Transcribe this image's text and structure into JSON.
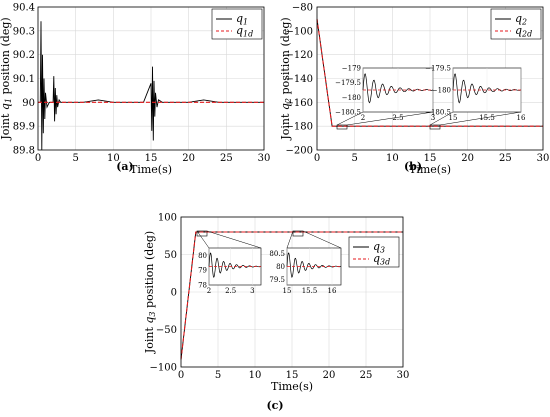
{
  "figure": {
    "panel_labels": [
      "(a)",
      "(b)",
      "(c)"
    ]
  },
  "chart_data": [
    {
      "type": "line",
      "panel": "(a)",
      "title": "",
      "xlabel": "Time(s)",
      "ylabel": "Joint q1 position (deg)",
      "xlim": [
        0,
        30
      ],
      "ylim": [
        89.8,
        90.4
      ],
      "xticks": [
        "0",
        "5",
        "10",
        "15",
        "20",
        "25",
        "30"
      ],
      "yticks": [
        "89.8",
        "89.9",
        "90",
        "90.1",
        "90.2",
        "90.3",
        "90.4"
      ],
      "grid": true,
      "legend_position": "top-right",
      "legend": [
        "q1",
        "q1d"
      ],
      "series": [
        {
          "name": "q1",
          "color": "#000000",
          "style": "solid",
          "x": [
            0,
            0.3,
            0.4,
            0.5,
            0.6,
            0.7,
            0.8,
            0.9,
            1.0,
            1.2,
            1.5,
            2.0,
            2.1,
            2.2,
            2.3,
            2.4,
            2.5,
            2.6,
            2.8,
            3.0,
            3.5,
            4.0,
            5,
            6,
            8,
            10,
            12,
            14,
            15.0,
            15.1,
            15.2,
            15.3,
            15.4,
            15.5,
            15.6,
            15.8,
            16.0,
            16.5,
            17,
            18,
            20,
            22,
            24,
            26,
            28,
            30
          ],
          "values": [
            90.0,
            90.0,
            90.34,
            89.8,
            90.2,
            89.87,
            90.1,
            89.93,
            90.04,
            89.98,
            90.0,
            90.0,
            90.11,
            89.92,
            90.06,
            89.95,
            90.03,
            89.98,
            90.01,
            90.0,
            90.0,
            90.0,
            90.0,
            90.0,
            90.01,
            90.0,
            90.0,
            90.0,
            90.08,
            89.88,
            90.15,
            89.84,
            90.09,
            89.94,
            90.04,
            89.98,
            90.01,
            90.0,
            90.0,
            90.0,
            90.0,
            90.01,
            90.0,
            90.0,
            90.0,
            90.0
          ]
        },
        {
          "name": "q1d",
          "color": "#e41a1c",
          "style": "dashed",
          "x": [
            0,
            30
          ],
          "values": [
            90.0,
            90.0
          ]
        }
      ]
    },
    {
      "type": "line",
      "panel": "(b)",
      "title": "",
      "xlabel": "Time(s)",
      "ylabel": "Joint q2 position (deg)",
      "xlim": [
        0,
        30
      ],
      "ylim": [
        -200,
        -80
      ],
      "xticks": [
        "0",
        "5",
        "10",
        "15",
        "20",
        "25",
        "30"
      ],
      "yticks": [
        "-200",
        "-180",
        "-160",
        "-140",
        "-120",
        "-100",
        "-80"
      ],
      "grid": true,
      "legend_position": "top-right",
      "legend": [
        "q2",
        "q2d"
      ],
      "series": [
        {
          "name": "q2",
          "color": "#000000",
          "style": "solid",
          "x": [
            0,
            2.0,
            30
          ],
          "values": [
            -90,
            -180,
            -180
          ]
        },
        {
          "name": "q2d",
          "color": "#e41a1c",
          "style": "dashed",
          "x": [
            0,
            2.0,
            30
          ],
          "values": [
            -90,
            -180,
            -180
          ]
        }
      ],
      "insets": [
        {
          "xlim": [
            2,
            3
          ],
          "ylim": [
            -180.5,
            -179
          ],
          "xticks": [
            "2",
            "2.5",
            "3"
          ],
          "yticks": [
            "-179",
            "-179.5",
            "-180",
            "-180.5"
          ]
        },
        {
          "xlim": [
            15,
            16
          ],
          "ylim": [
            -180.5,
            -179.5
          ],
          "xticks": [
            "15",
            "15.5",
            "16"
          ],
          "yticks": [
            "-179.5",
            "-180",
            "-180.5"
          ]
        }
      ]
    },
    {
      "type": "line",
      "panel": "(c)",
      "title": "",
      "xlabel": "Time(s)",
      "ylabel": "Joint q3 position (deg)",
      "xlim": [
        0,
        30
      ],
      "ylim": [
        -100,
        100
      ],
      "xticks": [
        "0",
        "5",
        "10",
        "15",
        "20",
        "25",
        "30"
      ],
      "yticks": [
        "-100",
        "-50",
        "0",
        "50",
        "100"
      ],
      "grid": true,
      "legend_position": "right",
      "legend": [
        "q3",
        "q3d"
      ],
      "series": [
        {
          "name": "q3",
          "color": "#000000",
          "style": "solid",
          "x": [
            0,
            2.0,
            30
          ],
          "values": [
            -90,
            80,
            80
          ]
        },
        {
          "name": "q3d",
          "color": "#e41a1c",
          "style": "dashed",
          "x": [
            0,
            2.0,
            30
          ],
          "values": [
            -90,
            80,
            80
          ]
        }
      ],
      "insets": [
        {
          "xlim": [
            2,
            3.2
          ],
          "ylim": [
            78,
            80.5
          ],
          "xticks": [
            "2",
            "2.5",
            "3"
          ],
          "yticks": [
            "80",
            "79",
            "78"
          ]
        },
        {
          "xlim": [
            15,
            16.2
          ],
          "ylim": [
            79.3,
            80.7
          ],
          "xticks": [
            "15",
            "15.5",
            "16"
          ],
          "yticks": [
            "80.5",
            "80",
            "79.5"
          ]
        }
      ]
    }
  ]
}
